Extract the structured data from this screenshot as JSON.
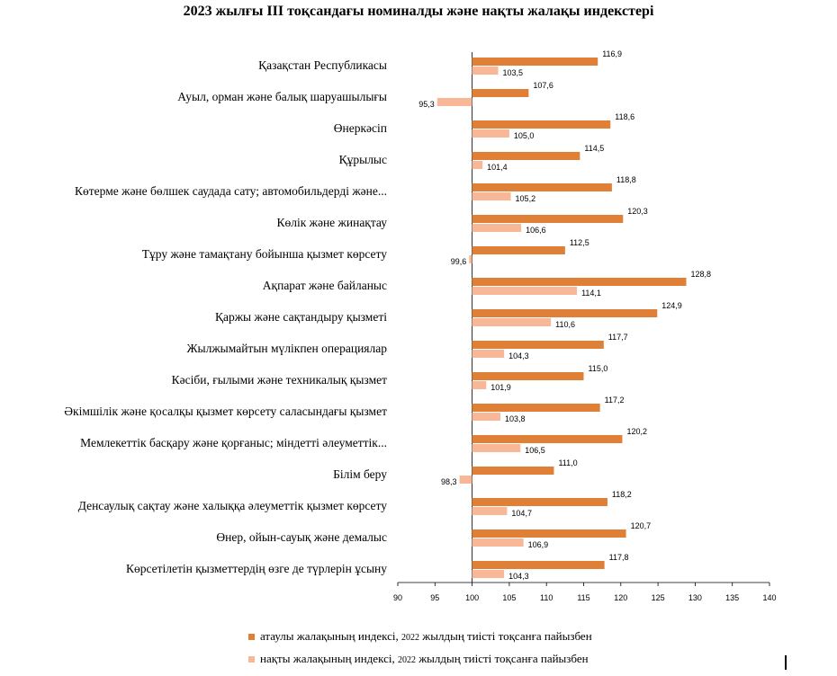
{
  "chart_data": {
    "type": "bar",
    "orientation": "horizontal",
    "title": "2023 жылғы ІІІ тоқсандағы номиналды және нақты жалақы индекстері",
    "categories": [
      "Қазақстан Республикасы",
      "Ауыл, орман және балық шаруашылығы",
      "Өнеркәсіп",
      "Құрылыс",
      "Көтерме және бөлшек саудада  сату; автомобильдерді және...",
      "Көлік және жинақтау",
      "Тұру және тамақтану бойынша қызмет көрсету",
      "Ақпарат және байланыс",
      "Қаржы және сақтандыру қызметі",
      "Жылжымайтын мүлікпен операциялар",
      "Кәсіби, ғылыми және техникалық қызмет",
      "Әкімшілік және қосалқы қызмет көрсету саласындағы қызмет",
      "Мемлекеттік басқару және қорғаныс; міндетті әлеуметтік...",
      "Білім беру",
      "Денсаулық сақтау және халыққа әлеуметтік қызмет көрсету",
      "Өнер, ойын-сауық және демалыс",
      "Көрсетілетін қызметтердің өзге де түрлерін ұсыну"
    ],
    "series": [
      {
        "name": "атаулы жалақының индексі, 2022 жылдың тиісті тоқсанға пайызбен",
        "color": "#E07F36",
        "values": [
          116.9,
          107.6,
          118.6,
          114.5,
          118.8,
          120.3,
          112.5,
          128.8,
          124.9,
          117.7,
          115.0,
          117.2,
          120.2,
          111.0,
          118.2,
          120.7,
          117.8
        ],
        "labels": [
          "116,9",
          "107,6",
          "118,6",
          "114,5",
          "118,8",
          "120,3",
          "112,5",
          "128,8",
          "124,9",
          "117,7",
          "115,0",
          "117,2",
          "120,2",
          "111,0",
          "118,2",
          "120,7",
          "117,8"
        ]
      },
      {
        "name": "нақты жалақының индексі, 2022 жылдың тиісті тоқсанға пайызбен",
        "color": "#F8B898",
        "values": [
          103.5,
          95.3,
          105.0,
          101.4,
          105.2,
          106.6,
          99.6,
          114.1,
          110.6,
          104.3,
          101.9,
          103.8,
          106.5,
          98.3,
          104.7,
          106.9,
          104.3
        ],
        "labels": [
          "103,5",
          "95,3",
          "105,0",
          "101,4",
          "105,2",
          "106,6",
          "99,6",
          "114,1",
          "110,6",
          "104,3",
          "101,9",
          "103,8",
          "106,5",
          "98,3",
          "104,7",
          "106,9",
          "104,3"
        ]
      }
    ],
    "xlim": [
      90,
      140
    ],
    "x_ticks": [
      90,
      95,
      100,
      105,
      110,
      115,
      120,
      125,
      130,
      135,
      140
    ],
    "baseline": 100,
    "grid": false,
    "legend_position": "bottom"
  },
  "legend": {
    "item1_main": "атаулы жалақының индексі,",
    "item1_small": "2022",
    "item1_rest": "жылдың тиісті тоқсанға пайызбен",
    "item2_main": "нақты жалақының индексі,",
    "item2_small": "2022",
    "item2_rest": "жылдың тиісті тоқсанға пайызбен"
  }
}
